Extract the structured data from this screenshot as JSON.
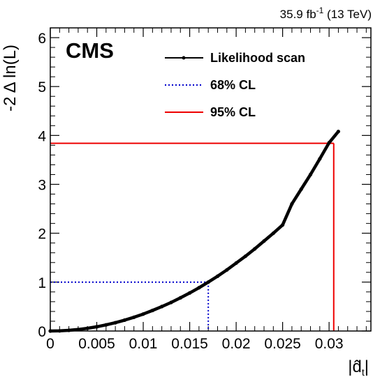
{
  "chart_data": {
    "type": "line",
    "title": "",
    "experiment_label": "CMS",
    "lumi_label": {
      "value": "35.9 fb",
      "superscript": "-1",
      "energy": " (13 TeV)"
    },
    "xlabel": "|d̂",
    "xlabel_sub": "t",
    "xlabel_close": "|",
    "ylabel": "-2 Δ ln(L)",
    "xlim": [
      0,
      0.0345
    ],
    "ylim": [
      0,
      6.2
    ],
    "xticks": [
      0,
      0.005,
      0.01,
      0.015,
      0.02,
      0.025,
      0.03
    ],
    "xtick_labels": [
      "0",
      "0.005",
      "0.01",
      "0.015",
      "0.02",
      "0.025",
      "0.03"
    ],
    "yticks": [
      0,
      1,
      2,
      3,
      4,
      5,
      6
    ],
    "ytick_labels": [
      "0",
      "1",
      "2",
      "3",
      "4",
      "5",
      "6"
    ],
    "grid": false,
    "legend_position": "top-right",
    "series": [
      {
        "name": "Likelihood scan",
        "color": "#000000",
        "style": "solid-with-markers",
        "x": [
          0,
          0.001,
          0.002,
          0.003,
          0.004,
          0.005,
          0.006,
          0.007,
          0.008,
          0.009,
          0.01,
          0.011,
          0.012,
          0.013,
          0.014,
          0.015,
          0.016,
          0.017,
          0.018,
          0.019,
          0.02,
          0.021,
          0.022,
          0.023,
          0.024,
          0.025,
          0.026,
          0.027,
          0.028,
          0.029,
          0.03,
          0.031
        ],
        "y": [
          0,
          0.003,
          0.014,
          0.031,
          0.055,
          0.087,
          0.125,
          0.17,
          0.222,
          0.281,
          0.347,
          0.42,
          0.5,
          0.585,
          0.678,
          0.778,
          0.885,
          1.0,
          1.12,
          1.25,
          1.39,
          1.53,
          1.68,
          1.84,
          2.0,
          2.17,
          2.6,
          2.9,
          3.2,
          3.52,
          3.85,
          4.08
        ]
      }
    ],
    "reference_lines": [
      {
        "name": "68% CL",
        "color": "#0000cc",
        "style": "dotted",
        "y": 1.0,
        "x_cross": 0.017
      },
      {
        "name": "95% CL",
        "color": "#ee0000",
        "style": "solid",
        "y": 3.84,
        "x_cross": 0.0305
      }
    ]
  }
}
